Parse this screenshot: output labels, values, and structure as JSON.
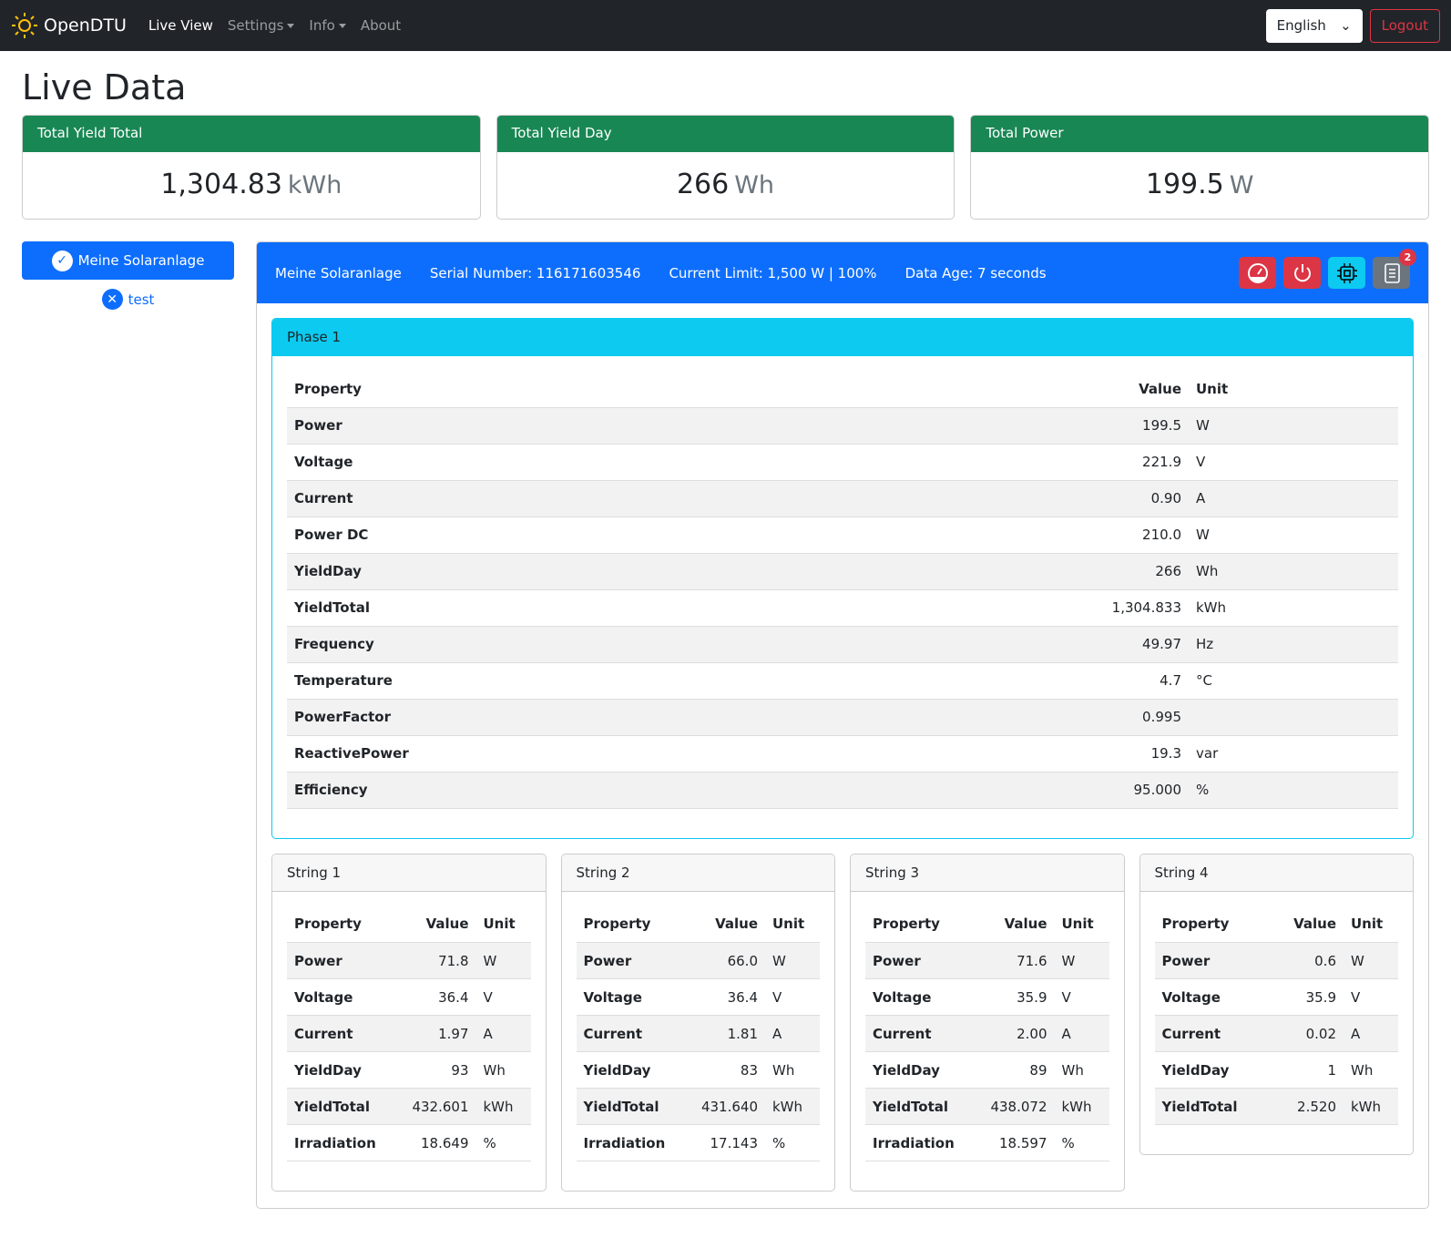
{
  "nav": {
    "brand": "OpenDTU",
    "items": [
      {
        "label": "Live View",
        "active": true
      },
      {
        "label": "Settings",
        "dropdown": true
      },
      {
        "label": "Info",
        "dropdown": true
      },
      {
        "label": "About"
      }
    ],
    "language": "English",
    "logout": "Logout"
  },
  "page_title": "Live Data",
  "totals": [
    {
      "title": "Total Yield Total",
      "value": "1,304.83",
      "unit": "kWh"
    },
    {
      "title": "Total Yield Day",
      "value": "266",
      "unit": "Wh"
    },
    {
      "title": "Total Power",
      "value": "199.5",
      "unit": "W"
    }
  ],
  "inverters": [
    {
      "name": "Meine Solaranlage",
      "status": "check",
      "selected": true
    },
    {
      "name": "test",
      "status": "x"
    }
  ],
  "inverter": {
    "name": "Meine Solaranlage",
    "serial": "Serial Number: 116171603546",
    "limit": "Current Limit: 1,500 W | 100%",
    "age": "Data Age: 7 seconds",
    "icons": [
      {
        "name": "speedometer-icon",
        "color": "#dc3545"
      },
      {
        "name": "power-icon",
        "color": "#dc3545"
      },
      {
        "name": "cpu-icon",
        "color": "#0dcaf0"
      },
      {
        "name": "journal-icon",
        "color": "#6c757d",
        "badge": "2"
      }
    ]
  },
  "headers": {
    "property": "Property",
    "value": "Value",
    "unit": "Unit"
  },
  "phase": {
    "title": "Phase 1",
    "rows": [
      [
        "Power",
        "199.5",
        "W"
      ],
      [
        "Voltage",
        "221.9",
        "V"
      ],
      [
        "Current",
        "0.90",
        "A"
      ],
      [
        "Power DC",
        "210.0",
        "W"
      ],
      [
        "YieldDay",
        "266",
        "Wh"
      ],
      [
        "YieldTotal",
        "1,304.833",
        "kWh"
      ],
      [
        "Frequency",
        "49.97",
        "Hz"
      ],
      [
        "Temperature",
        "4.7",
        "°C"
      ],
      [
        "PowerFactor",
        "0.995",
        ""
      ],
      [
        "ReactivePower",
        "19.3",
        "var"
      ],
      [
        "Efficiency",
        "95.000",
        "%"
      ]
    ]
  },
  "strings": [
    {
      "title": "String 1",
      "rows": [
        [
          "Power",
          "71.8",
          "W"
        ],
        [
          "Voltage",
          "36.4",
          "V"
        ],
        [
          "Current",
          "1.97",
          "A"
        ],
        [
          "YieldDay",
          "93",
          "Wh"
        ],
        [
          "YieldTotal",
          "432.601",
          "kWh"
        ],
        [
          "Irradiation",
          "18.649",
          "%"
        ]
      ]
    },
    {
      "title": "String 2",
      "rows": [
        [
          "Power",
          "66.0",
          "W"
        ],
        [
          "Voltage",
          "36.4",
          "V"
        ],
        [
          "Current",
          "1.81",
          "A"
        ],
        [
          "YieldDay",
          "83",
          "Wh"
        ],
        [
          "YieldTotal",
          "431.640",
          "kWh"
        ],
        [
          "Irradiation",
          "17.143",
          "%"
        ]
      ]
    },
    {
      "title": "String 3",
      "rows": [
        [
          "Power",
          "71.6",
          "W"
        ],
        [
          "Voltage",
          "35.9",
          "V"
        ],
        [
          "Current",
          "2.00",
          "A"
        ],
        [
          "YieldDay",
          "89",
          "Wh"
        ],
        [
          "YieldTotal",
          "438.072",
          "kWh"
        ],
        [
          "Irradiation",
          "18.597",
          "%"
        ]
      ]
    },
    {
      "title": "String 4",
      "rows": [
        [
          "Power",
          "0.6",
          "W"
        ],
        [
          "Voltage",
          "35.9",
          "V"
        ],
        [
          "Current",
          "0.02",
          "A"
        ],
        [
          "YieldDay",
          "1",
          "Wh"
        ],
        [
          "YieldTotal",
          "2.520",
          "kWh"
        ]
      ]
    }
  ]
}
